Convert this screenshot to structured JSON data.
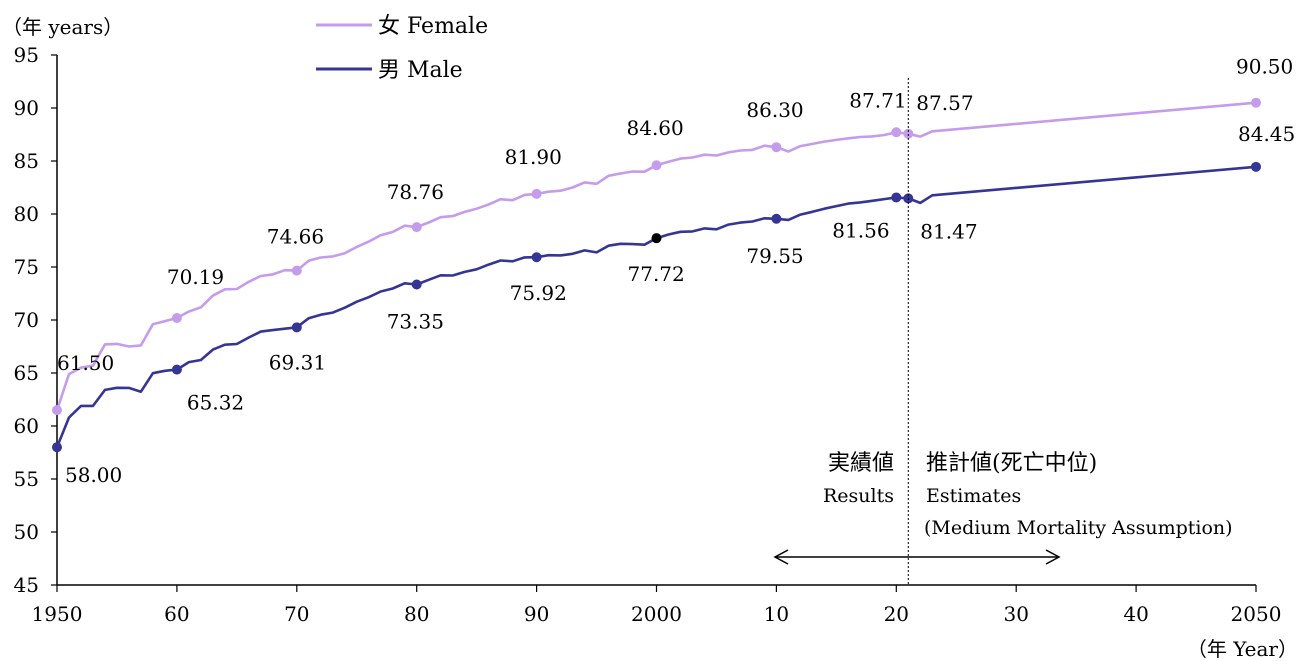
{
  "chart_data": {
    "type": "line",
    "title": "",
    "ylabel": "（年 years）",
    "xlabel": "（年 Year）",
    "ylim": [
      45,
      95
    ],
    "yticks": [
      45,
      50,
      55,
      60,
      65,
      70,
      75,
      80,
      85,
      90,
      95
    ],
    "xlim": [
      1950,
      2050
    ],
    "xticks": [
      {
        "x": 1950,
        "label": "1950"
      },
      {
        "x": 1960,
        "label": "60"
      },
      {
        "x": 1970,
        "label": "70"
      },
      {
        "x": 1980,
        "label": "80"
      },
      {
        "x": 1990,
        "label": "90"
      },
      {
        "x": 2000,
        "label": "2000"
      },
      {
        "x": 2010,
        "label": "10"
      },
      {
        "x": 2020,
        "label": "20"
      },
      {
        "x": 2030,
        "label": "30"
      },
      {
        "x": 2040,
        "label": "40"
      },
      {
        "x": 2050,
        "label": "2050"
      }
    ],
    "divider_year": 2021,
    "grid": false,
    "legend_position": "top-left",
    "series": [
      {
        "name": "女 Female",
        "color": "#c59ceb",
        "points": [
          [
            1950,
            61.5
          ],
          [
            1951,
            64.9
          ],
          [
            1952,
            65.5
          ],
          [
            1953,
            65.7
          ],
          [
            1954,
            67.7
          ],
          [
            1955,
            67.75
          ],
          [
            1956,
            67.5
          ],
          [
            1957,
            67.6
          ],
          [
            1958,
            69.6
          ],
          [
            1959,
            69.9
          ],
          [
            1960,
            70.19
          ],
          [
            1961,
            70.8
          ],
          [
            1962,
            71.2
          ],
          [
            1963,
            72.3
          ],
          [
            1964,
            72.9
          ],
          [
            1965,
            72.92
          ],
          [
            1966,
            73.6
          ],
          [
            1967,
            74.15
          ],
          [
            1968,
            74.3
          ],
          [
            1969,
            74.7
          ],
          [
            1970,
            74.66
          ],
          [
            1971,
            75.6
          ],
          [
            1972,
            75.9
          ],
          [
            1973,
            76.0
          ],
          [
            1974,
            76.3
          ],
          [
            1975,
            76.9
          ],
          [
            1976,
            77.4
          ],
          [
            1977,
            78.0
          ],
          [
            1978,
            78.3
          ],
          [
            1979,
            78.9
          ],
          [
            1980,
            78.76
          ],
          [
            1981,
            79.2
          ],
          [
            1982,
            79.7
          ],
          [
            1983,
            79.8
          ],
          [
            1984,
            80.2
          ],
          [
            1985,
            80.5
          ],
          [
            1986,
            80.9
          ],
          [
            1987,
            81.4
          ],
          [
            1988,
            81.3
          ],
          [
            1989,
            81.8
          ],
          [
            1990,
            81.9
          ],
          [
            1991,
            82.1
          ],
          [
            1992,
            82.2
          ],
          [
            1993,
            82.5
          ],
          [
            1994,
            82.98
          ],
          [
            1995,
            82.85
          ],
          [
            1996,
            83.6
          ],
          [
            1997,
            83.82
          ],
          [
            1998,
            84.01
          ],
          [
            1999,
            83.99
          ],
          [
            2000,
            84.6
          ],
          [
            2001,
            84.93
          ],
          [
            2002,
            85.23
          ],
          [
            2003,
            85.33
          ],
          [
            2004,
            85.59
          ],
          [
            2005,
            85.52
          ],
          [
            2006,
            85.81
          ],
          [
            2007,
            85.99
          ],
          [
            2008,
            86.05
          ],
          [
            2009,
            86.44
          ],
          [
            2010,
            86.3
          ],
          [
            2011,
            85.9
          ],
          [
            2012,
            86.41
          ],
          [
            2013,
            86.61
          ],
          [
            2014,
            86.83
          ],
          [
            2015,
            86.99
          ],
          [
            2016,
            87.14
          ],
          [
            2017,
            87.26
          ],
          [
            2018,
            87.32
          ],
          [
            2019,
            87.45
          ],
          [
            2020,
            87.71
          ],
          [
            2021,
            87.57
          ],
          [
            2022,
            87.3
          ],
          [
            2023,
            87.8
          ],
          [
            2050,
            90.5
          ]
        ],
        "labeled": [
          {
            "x": 1950,
            "value": "61.50"
          },
          {
            "x": 1960,
            "value": "70.19"
          },
          {
            "x": 1970,
            "value": "74.66"
          },
          {
            "x": 1980,
            "value": "78.76"
          },
          {
            "x": 1990,
            "value": "81.90"
          },
          {
            "x": 2000,
            "value": "84.60"
          },
          {
            "x": 2010,
            "value": "86.30"
          },
          {
            "x": 2020,
            "value": "87.71"
          },
          {
            "x": 2021,
            "value": "87.57"
          },
          {
            "x": 2050,
            "value": "90.50"
          }
        ]
      },
      {
        "name": "男 Male",
        "color": "#343594",
        "points": [
          [
            1950,
            58.0
          ],
          [
            1951,
            60.8
          ],
          [
            1952,
            61.9
          ],
          [
            1953,
            61.9
          ],
          [
            1954,
            63.41
          ],
          [
            1955,
            63.6
          ],
          [
            1956,
            63.59
          ],
          [
            1957,
            63.24
          ],
          [
            1958,
            64.98
          ],
          [
            1959,
            65.21
          ],
          [
            1960,
            65.32
          ],
          [
            1961,
            66.03
          ],
          [
            1962,
            66.23
          ],
          [
            1963,
            67.21
          ],
          [
            1964,
            67.67
          ],
          [
            1965,
            67.74
          ],
          [
            1966,
            68.35
          ],
          [
            1967,
            68.91
          ],
          [
            1968,
            69.05
          ],
          [
            1969,
            69.18
          ],
          [
            1970,
            69.31
          ],
          [
            1971,
            70.17
          ],
          [
            1972,
            70.5
          ],
          [
            1973,
            70.7
          ],
          [
            1974,
            71.16
          ],
          [
            1975,
            71.73
          ],
          [
            1976,
            72.15
          ],
          [
            1977,
            72.69
          ],
          [
            1978,
            72.97
          ],
          [
            1979,
            73.46
          ],
          [
            1980,
            73.35
          ],
          [
            1981,
            73.79
          ],
          [
            1982,
            74.22
          ],
          [
            1983,
            74.2
          ],
          [
            1984,
            74.54
          ],
          [
            1985,
            74.78
          ],
          [
            1986,
            75.23
          ],
          [
            1987,
            75.61
          ],
          [
            1988,
            75.54
          ],
          [
            1989,
            75.91
          ],
          [
            1990,
            75.92
          ],
          [
            1991,
            76.11
          ],
          [
            1992,
            76.09
          ],
          [
            1993,
            76.25
          ],
          [
            1994,
            76.57
          ],
          [
            1995,
            76.38
          ],
          [
            1996,
            77.01
          ],
          [
            1997,
            77.19
          ],
          [
            1998,
            77.16
          ],
          [
            1999,
            77.1
          ],
          [
            2000,
            77.72
          ],
          [
            2001,
            78.07
          ],
          [
            2002,
            78.32
          ],
          [
            2003,
            78.36
          ],
          [
            2004,
            78.64
          ],
          [
            2005,
            78.56
          ],
          [
            2006,
            79.0
          ],
          [
            2007,
            79.19
          ],
          [
            2008,
            79.29
          ],
          [
            2009,
            79.59
          ],
          [
            2010,
            79.55
          ],
          [
            2011,
            79.44
          ],
          [
            2012,
            79.94
          ],
          [
            2013,
            80.21
          ],
          [
            2014,
            80.5
          ],
          [
            2015,
            80.75
          ],
          [
            2016,
            80.98
          ],
          [
            2017,
            81.09
          ],
          [
            2018,
            81.25
          ],
          [
            2019,
            81.41
          ],
          [
            2020,
            81.56
          ],
          [
            2021,
            81.47
          ],
          [
            2022,
            81.05
          ],
          [
            2023,
            81.76
          ],
          [
            2050,
            84.45
          ]
        ],
        "labeled": [
          {
            "x": 1950,
            "value": "58.00"
          },
          {
            "x": 1960,
            "value": "65.32"
          },
          {
            "x": 1970,
            "value": "69.31"
          },
          {
            "x": 1980,
            "value": "73.35"
          },
          {
            "x": 1990,
            "value": "75.92"
          },
          {
            "x": 2000,
            "value": "77.72",
            "color": "#000000"
          },
          {
            "x": 2010,
            "value": "79.55"
          },
          {
            "x": 2020,
            "value": "81.56"
          },
          {
            "x": 2021,
            "value": "81.47"
          },
          {
            "x": 2050,
            "value": "84.45"
          }
        ]
      }
    ],
    "annotations": {
      "results_jp": "実績値",
      "results_en": "Results",
      "estimates_jp": "推計値(死亡中位)",
      "estimates_en": "Estimates",
      "estimates_note": "(Medium Mortality Assumption)"
    }
  }
}
